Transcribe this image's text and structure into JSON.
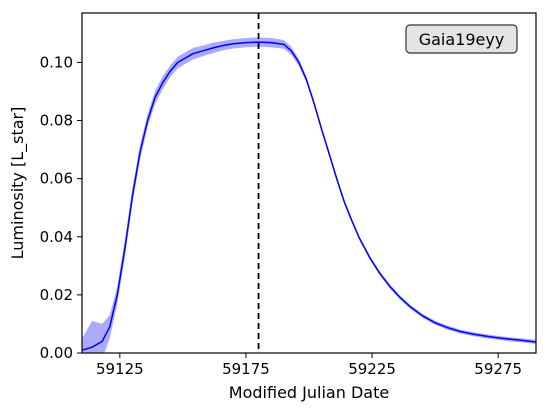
{
  "chart_data": {
    "type": "line",
    "title": "",
    "xlabel": "Modified Julian Date",
    "ylabel": "Luminosity [L_star]",
    "xlim": [
      59110,
      59290
    ],
    "ylim": [
      0.0,
      0.117
    ],
    "x_ticks": [
      59125,
      59175,
      59225,
      59275
    ],
    "y_ticks": [
      0.0,
      0.02,
      0.04,
      0.06,
      0.08,
      0.1
    ],
    "y_tick_labels": [
      "0.00",
      "0.02",
      "0.04",
      "0.06",
      "0.08",
      "0.10"
    ],
    "grid": false,
    "legend": "none",
    "annotation": {
      "text": "Gaia19eyy",
      "placement": "top-right"
    },
    "vline": {
      "x": 59180,
      "style": "dashed",
      "color": "#000000"
    },
    "series": [
      {
        "color": "#0000ff",
        "band_color": "#aaaaff",
        "x": [
          59110,
          59114,
          59118,
          59121,
          59124,
          59127,
          59130,
          59133,
          59136,
          59139,
          59142,
          59145,
          59148,
          59151,
          59154,
          59158,
          59162,
          59166,
          59170,
          59175,
          59180,
          59185,
          59190,
          59193,
          59196,
          59199,
          59202,
          59205,
          59208,
          59211,
          59214,
          59217,
          59220,
          59224,
          59228,
          59232,
          59236,
          59240,
          59245,
          59250,
          59255,
          59260,
          59265,
          59270,
          59275,
          59280,
          59285,
          59290
        ],
        "y": [
          0.001,
          0.002,
          0.004,
          0.009,
          0.02,
          0.036,
          0.054,
          0.069,
          0.08,
          0.088,
          0.093,
          0.097,
          0.1,
          0.1015,
          0.103,
          0.104,
          0.105,
          0.1058,
          0.1064,
          0.1068,
          0.107,
          0.1068,
          0.1062,
          0.104,
          0.1,
          0.094,
          0.086,
          0.077,
          0.0685,
          0.06,
          0.052,
          0.0455,
          0.0395,
          0.033,
          0.0275,
          0.023,
          0.0192,
          0.016,
          0.0128,
          0.0104,
          0.0087,
          0.0074,
          0.0065,
          0.0058,
          0.0052,
          0.0047,
          0.0043,
          0.0038
        ],
        "band_halfwidth": [
          0.004,
          0.009,
          0.006,
          0.004,
          0.003,
          0.003,
          0.0028,
          0.0025,
          0.0022,
          0.0022,
          0.0022,
          0.002,
          0.002,
          0.002,
          0.002,
          0.0018,
          0.0018,
          0.0016,
          0.0016,
          0.0016,
          0.0016,
          0.0016,
          0.0015,
          0.0014,
          0.0012,
          0.001,
          0.0009,
          0.0008,
          0.0008,
          0.0008,
          0.0008,
          0.0007,
          0.0007,
          0.0007,
          0.0007,
          0.0007,
          0.0007,
          0.0007,
          0.0007,
          0.0007,
          0.0007,
          0.0007,
          0.0007,
          0.0007,
          0.0007,
          0.0007,
          0.0007,
          0.0007
        ]
      }
    ]
  }
}
